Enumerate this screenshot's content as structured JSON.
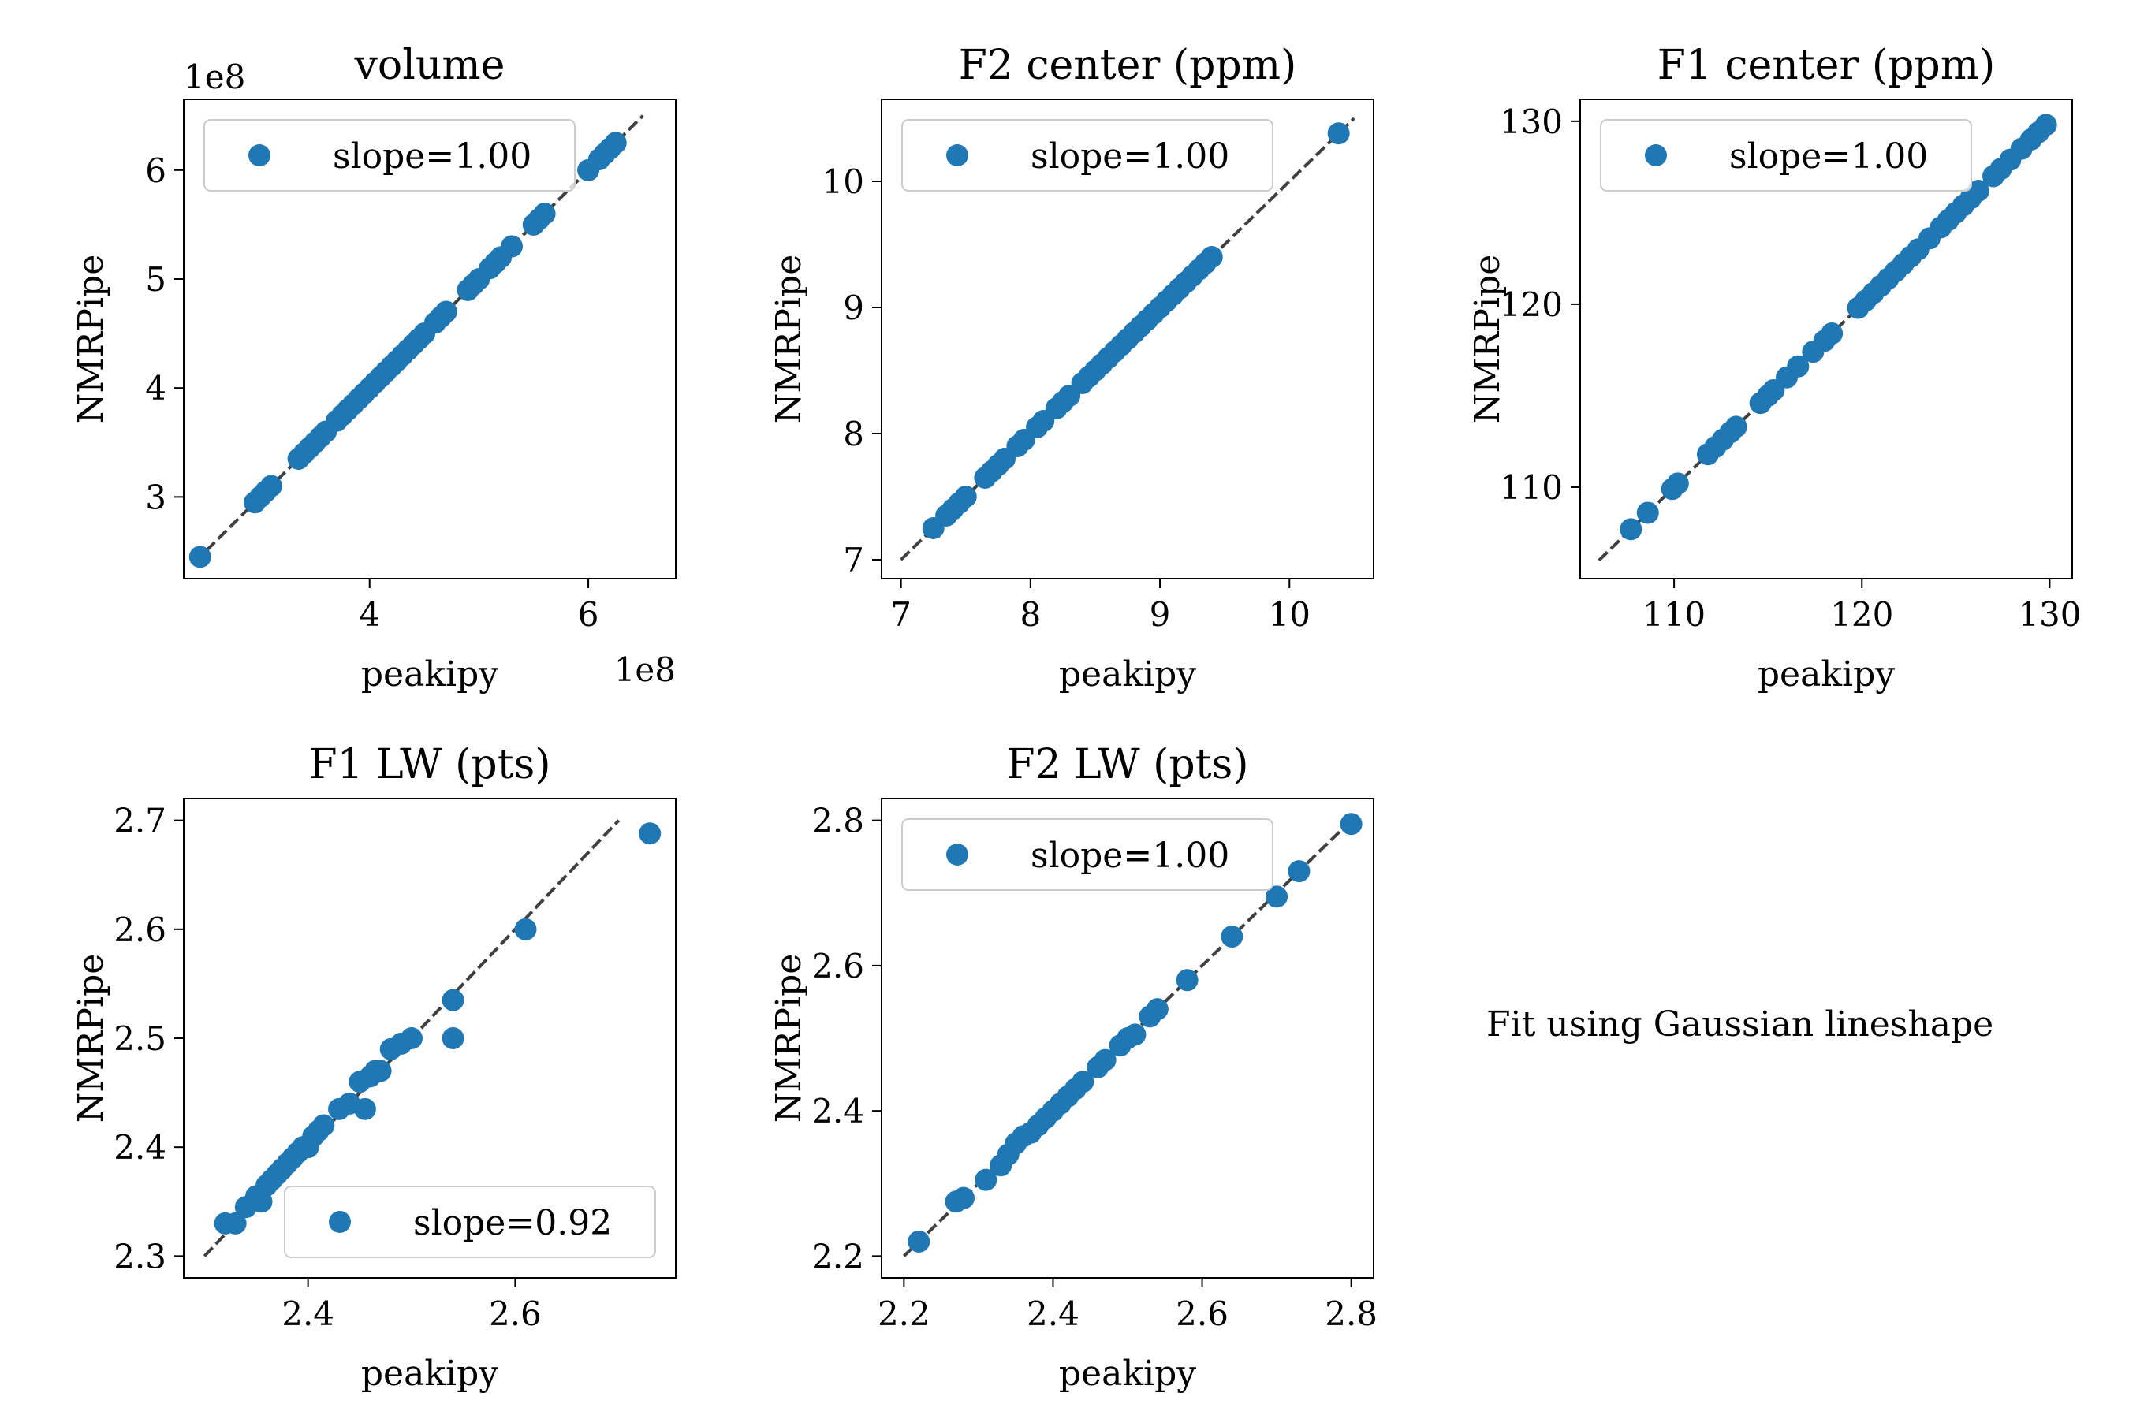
{
  "figure": {
    "note": "Fit using Gaussian lineshape",
    "marker_color": "#1f77b4",
    "line_color": "#404040"
  },
  "chart_data": [
    {
      "type": "scatter",
      "title": "volume",
      "xlabel": "peakipy",
      "ylabel": "NMRPipe",
      "x_offset_text": "1e8",
      "y_offset_text": "1e8",
      "xlim": [
        2.3,
        6.8
      ],
      "ylim": [
        2.25,
        6.65
      ],
      "xticks": [
        4,
        6
      ],
      "yticks": [
        3,
        4,
        5,
        6
      ],
      "tick_decimals": 0,
      "legend": {
        "label": "slope=1.00",
        "loc": "upper left"
      },
      "identity_line": [
        2.4,
        6.5
      ],
      "series": [
        {
          "name": "slope=1.00",
          "x": [
            2.45,
            2.95,
            3.0,
            3.05,
            3.1,
            3.35,
            3.4,
            3.45,
            3.5,
            3.55,
            3.6,
            3.7,
            3.75,
            3.8,
            3.85,
            3.9,
            3.95,
            4.0,
            4.05,
            4.1,
            4.15,
            4.2,
            4.25,
            4.3,
            4.35,
            4.4,
            4.45,
            4.5,
            4.6,
            4.65,
            4.7,
            4.9,
            4.95,
            5.0,
            5.1,
            5.15,
            5.2,
            5.3,
            5.5,
            5.55,
            5.6,
            6.0,
            6.1,
            6.15,
            6.2,
            6.25
          ],
          "y": [
            2.45,
            2.95,
            3.0,
            3.05,
            3.1,
            3.35,
            3.4,
            3.45,
            3.5,
            3.55,
            3.6,
            3.7,
            3.75,
            3.8,
            3.85,
            3.9,
            3.95,
            4.0,
            4.05,
            4.1,
            4.15,
            4.2,
            4.25,
            4.3,
            4.35,
            4.4,
            4.45,
            4.5,
            4.6,
            4.65,
            4.7,
            4.9,
            4.95,
            5.0,
            5.1,
            5.15,
            5.2,
            5.3,
            5.5,
            5.55,
            5.6,
            6.0,
            6.1,
            6.15,
            6.2,
            6.25
          ]
        }
      ]
    },
    {
      "type": "scatter",
      "title": "F2 center (ppm)",
      "xlabel": "peakipy",
      "ylabel": "NMRPipe",
      "xlim": [
        6.85,
        10.65
      ],
      "ylim": [
        6.85,
        10.65
      ],
      "xticks": [
        7,
        8,
        9,
        10
      ],
      "yticks": [
        7,
        8,
        9,
        10
      ],
      "tick_decimals": 0,
      "legend": {
        "label": "slope=1.00",
        "loc": "upper left"
      },
      "identity_line": [
        7.0,
        10.5
      ],
      "series": [
        {
          "name": "slope=1.00",
          "x": [
            7.25,
            7.35,
            7.4,
            7.45,
            7.5,
            7.65,
            7.7,
            7.75,
            7.8,
            7.9,
            7.95,
            8.05,
            8.1,
            8.2,
            8.25,
            8.3,
            8.4,
            8.45,
            8.5,
            8.55,
            8.6,
            8.65,
            8.7,
            8.75,
            8.8,
            8.85,
            8.9,
            8.95,
            9.0,
            9.05,
            9.1,
            9.15,
            9.2,
            9.25,
            9.3,
            9.35,
            9.4,
            10.38
          ],
          "y": [
            7.25,
            7.35,
            7.4,
            7.45,
            7.5,
            7.65,
            7.7,
            7.75,
            7.8,
            7.9,
            7.95,
            8.05,
            8.1,
            8.2,
            8.25,
            8.3,
            8.4,
            8.45,
            8.5,
            8.55,
            8.6,
            8.65,
            8.7,
            8.75,
            8.8,
            8.85,
            8.9,
            8.95,
            9.0,
            9.05,
            9.1,
            9.15,
            9.2,
            9.25,
            9.3,
            9.35,
            9.4,
            10.38
          ]
        }
      ]
    },
    {
      "type": "scatter",
      "title": "F1 center (ppm)",
      "xlabel": "peakipy",
      "ylabel": "NMRPipe",
      "xlim": [
        105.0,
        131.2
      ],
      "ylim": [
        105.0,
        131.2
      ],
      "xticks": [
        110,
        120,
        130
      ],
      "yticks": [
        110,
        120,
        130
      ],
      "tick_decimals": 0,
      "legend": {
        "label": "slope=1.00",
        "loc": "upper left"
      },
      "identity_line": [
        106.0,
        130.0
      ],
      "series": [
        {
          "name": "slope=1.00",
          "x": [
            107.7,
            108.6,
            109.9,
            110.2,
            111.8,
            112.2,
            112.6,
            113.0,
            113.3,
            114.6,
            115.0,
            115.3,
            116.0,
            116.6,
            117.4,
            118.0,
            118.4,
            119.8,
            120.2,
            120.6,
            121.0,
            121.4,
            121.8,
            122.2,
            122.6,
            123.0,
            123.6,
            124.2,
            124.6,
            125.0,
            125.4,
            125.8,
            126.2,
            127.0,
            127.4,
            127.9,
            128.5,
            129.0,
            129.4,
            129.8
          ],
          "y": [
            107.7,
            108.6,
            109.9,
            110.2,
            111.8,
            112.2,
            112.6,
            113.0,
            113.3,
            114.6,
            115.0,
            115.3,
            116.0,
            116.6,
            117.4,
            118.0,
            118.4,
            119.8,
            120.2,
            120.6,
            121.0,
            121.4,
            121.8,
            122.2,
            122.6,
            123.0,
            123.6,
            124.2,
            124.6,
            125.0,
            125.4,
            125.8,
            126.2,
            127.0,
            127.4,
            127.9,
            128.5,
            129.0,
            129.4,
            129.8
          ]
        }
      ]
    },
    {
      "type": "scatter",
      "title": "F1 LW (pts)",
      "xlabel": "peakipy",
      "ylabel": "NMRPipe",
      "xlim": [
        2.28,
        2.755
      ],
      "ylim": [
        2.28,
        2.72
      ],
      "xticks": [
        2.4,
        2.6
      ],
      "yticks": [
        2.3,
        2.4,
        2.5,
        2.6,
        2.7
      ],
      "tick_decimals": 1,
      "legend": {
        "label": "slope=0.92",
        "loc": "lower right"
      },
      "identity_line": [
        2.3,
        2.7
      ],
      "series": [
        {
          "name": "slope=0.92",
          "x": [
            2.32,
            2.33,
            2.34,
            2.35,
            2.355,
            2.36,
            2.365,
            2.37,
            2.375,
            2.38,
            2.385,
            2.39,
            2.395,
            2.4,
            2.405,
            2.41,
            2.415,
            2.43,
            2.44,
            2.45,
            2.455,
            2.46,
            2.465,
            2.47,
            2.48,
            2.49,
            2.5,
            2.54,
            2.54,
            2.61,
            2.73
          ],
          "y": [
            2.33,
            2.33,
            2.345,
            2.355,
            2.35,
            2.365,
            2.37,
            2.375,
            2.38,
            2.385,
            2.39,
            2.395,
            2.4,
            2.4,
            2.41,
            2.415,
            2.42,
            2.435,
            2.44,
            2.46,
            2.435,
            2.465,
            2.47,
            2.47,
            2.49,
            2.495,
            2.5,
            2.535,
            2.5,
            2.6,
            2.688
          ]
        }
      ]
    },
    {
      "type": "scatter",
      "title": "F2 LW (pts)",
      "xlabel": "peakipy",
      "ylabel": "NMRPipe",
      "xlim": [
        2.17,
        2.83
      ],
      "ylim": [
        2.17,
        2.83
      ],
      "xticks": [
        2.2,
        2.4,
        2.6,
        2.8
      ],
      "yticks": [
        2.2,
        2.4,
        2.6,
        2.8
      ],
      "tick_decimals": 1,
      "legend": {
        "label": "slope=1.00",
        "loc": "upper left"
      },
      "identity_line": [
        2.2,
        2.8
      ],
      "series": [
        {
          "name": "slope=1.00",
          "x": [
            2.22,
            2.27,
            2.28,
            2.31,
            2.33,
            2.34,
            2.35,
            2.36,
            2.37,
            2.38,
            2.39,
            2.4,
            2.41,
            2.42,
            2.43,
            2.44,
            2.46,
            2.47,
            2.49,
            2.5,
            2.51,
            2.53,
            2.54,
            2.58,
            2.64,
            2.7,
            2.73,
            2.8
          ],
          "y": [
            2.22,
            2.275,
            2.28,
            2.305,
            2.325,
            2.34,
            2.355,
            2.365,
            2.37,
            2.38,
            2.39,
            2.4,
            2.41,
            2.42,
            2.43,
            2.44,
            2.46,
            2.47,
            2.49,
            2.5,
            2.505,
            2.53,
            2.54,
            2.58,
            2.64,
            2.695,
            2.73,
            2.795
          ]
        }
      ]
    }
  ]
}
